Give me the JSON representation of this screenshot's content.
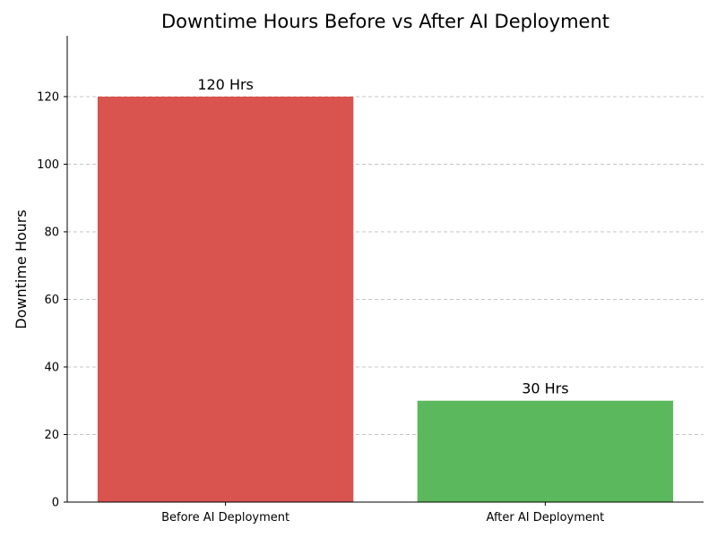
{
  "chart_data": {
    "type": "bar",
    "title": "Downtime Hours Before vs After AI Deployment",
    "xlabel": "",
    "ylabel": "Downtime Hours",
    "categories": [
      "Before AI Deployment",
      "After AI Deployment"
    ],
    "values": [
      120,
      30
    ],
    "data_labels": [
      "120 Hrs",
      "30 Hrs"
    ],
    "colors": [
      "#d9534f",
      "#5cb85c"
    ],
    "ylim": [
      0,
      138
    ],
    "yticks": [
      0,
      20,
      40,
      60,
      80,
      100,
      120
    ],
    "grid": "y-dashed",
    "legend": "none"
  }
}
